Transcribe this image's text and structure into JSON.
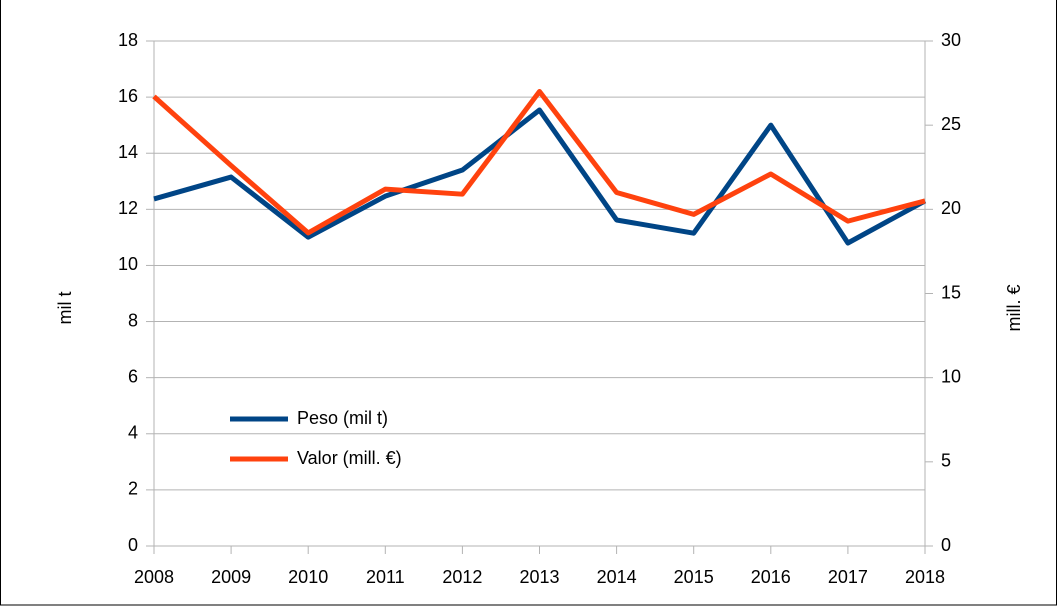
{
  "chart_data": {
    "type": "line",
    "categories": [
      "2008",
      "2009",
      "2010",
      "2011",
      "2012",
      "2013",
      "2014",
      "2015",
      "2016",
      "2017",
      "2018"
    ],
    "series": [
      {
        "name": "Peso (mil t)",
        "color": "#004586",
        "values": [
          12.37,
          13.15,
          11.01,
          12.47,
          13.4,
          15.54,
          11.62,
          11.15,
          15.0,
          10.8,
          12.3
        ]
      },
      {
        "name": "Valor (mill. €)",
        "color": "#ff420e",
        "axis": "y2",
        "values": [
          26.7,
          22.6,
          18.6,
          21.2,
          20.9,
          27.0,
          21.0,
          19.7,
          22.1,
          19.3,
          20.5
        ]
      }
    ],
    "ylabel": "mil t",
    "y2label": "mill. €",
    "ylim": [
      0,
      18
    ],
    "yticks": [
      0,
      2,
      4,
      6,
      8,
      10,
      12,
      14,
      16,
      18
    ],
    "y2lim": [
      0,
      30
    ],
    "y2ticks": [
      0,
      5,
      10,
      15,
      20,
      25,
      30
    ],
    "grid": true
  }
}
